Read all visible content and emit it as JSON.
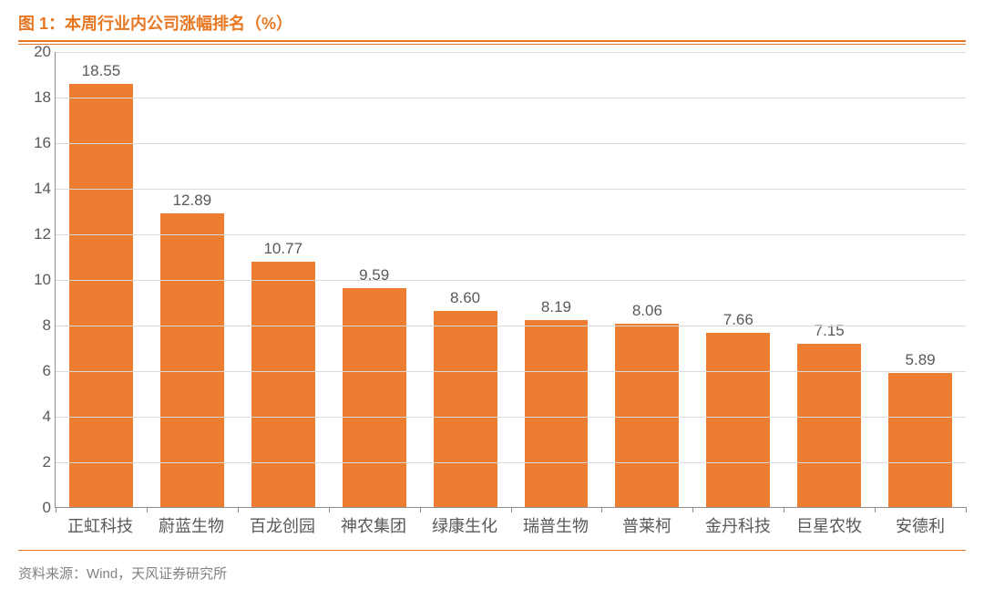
{
  "title": "图 1：本周行业内公司涨幅排名（%）",
  "source": "资料来源：Wind，天风证券研究所",
  "chart": {
    "type": "bar",
    "categories": [
      "正虹科技",
      "蔚蓝生物",
      "百龙创园",
      "神农集团",
      "绿康生化",
      "瑞普生物",
      "普莱柯",
      "金丹科技",
      "巨星农牧",
      "安德利"
    ],
    "values": [
      18.55,
      12.89,
      10.77,
      9.59,
      8.6,
      8.19,
      8.06,
      7.66,
      7.15,
      5.89
    ],
    "value_labels": [
      "18.55",
      "12.89",
      "10.77",
      "9.59",
      "8.60",
      "8.19",
      "8.06",
      "7.66",
      "7.15",
      "5.89"
    ],
    "bar_color": "#ed7d31",
    "ylim": [
      0,
      20
    ],
    "ytick_step": 2,
    "yticks": [
      0,
      2,
      4,
      6,
      8,
      10,
      12,
      14,
      16,
      18,
      20
    ],
    "background_color": "#ffffff",
    "grid_color": "#d9d9d9",
    "axis_color": "#8c8c8c",
    "tick_fontsize": 17,
    "category_fontsize": 18,
    "title_fontsize": 18,
    "title_color": "#e87722",
    "rule_color": "#e87722",
    "text_color": "#595959",
    "bar_width_ratio": 0.7
  }
}
